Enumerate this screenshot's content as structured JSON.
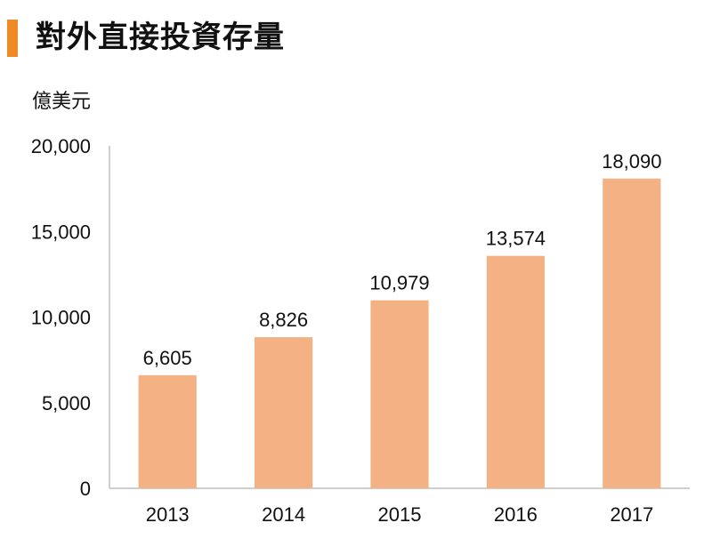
{
  "header": {
    "title": "對外直接投資存量",
    "accent_color": "#f08a24"
  },
  "chart_data": {
    "type": "bar",
    "title": "對外直接投資存量",
    "ylabel": "億美元",
    "xlabel": "",
    "categories": [
      "2013",
      "2014",
      "2015",
      "2016",
      "2017"
    ],
    "values": [
      6605,
      8826,
      10979,
      13574,
      18090
    ],
    "value_labels": [
      "6,605",
      "8,826",
      "10,979",
      "13,574",
      "18,090"
    ],
    "ylim": [
      0,
      20000
    ],
    "yticks": [
      0,
      5000,
      10000,
      15000,
      20000
    ],
    "ytick_labels": [
      "0",
      "5,000",
      "10,000",
      "15,000",
      "20,000"
    ],
    "bar_color": "#f4b183",
    "grid": false,
    "legend": "none"
  }
}
